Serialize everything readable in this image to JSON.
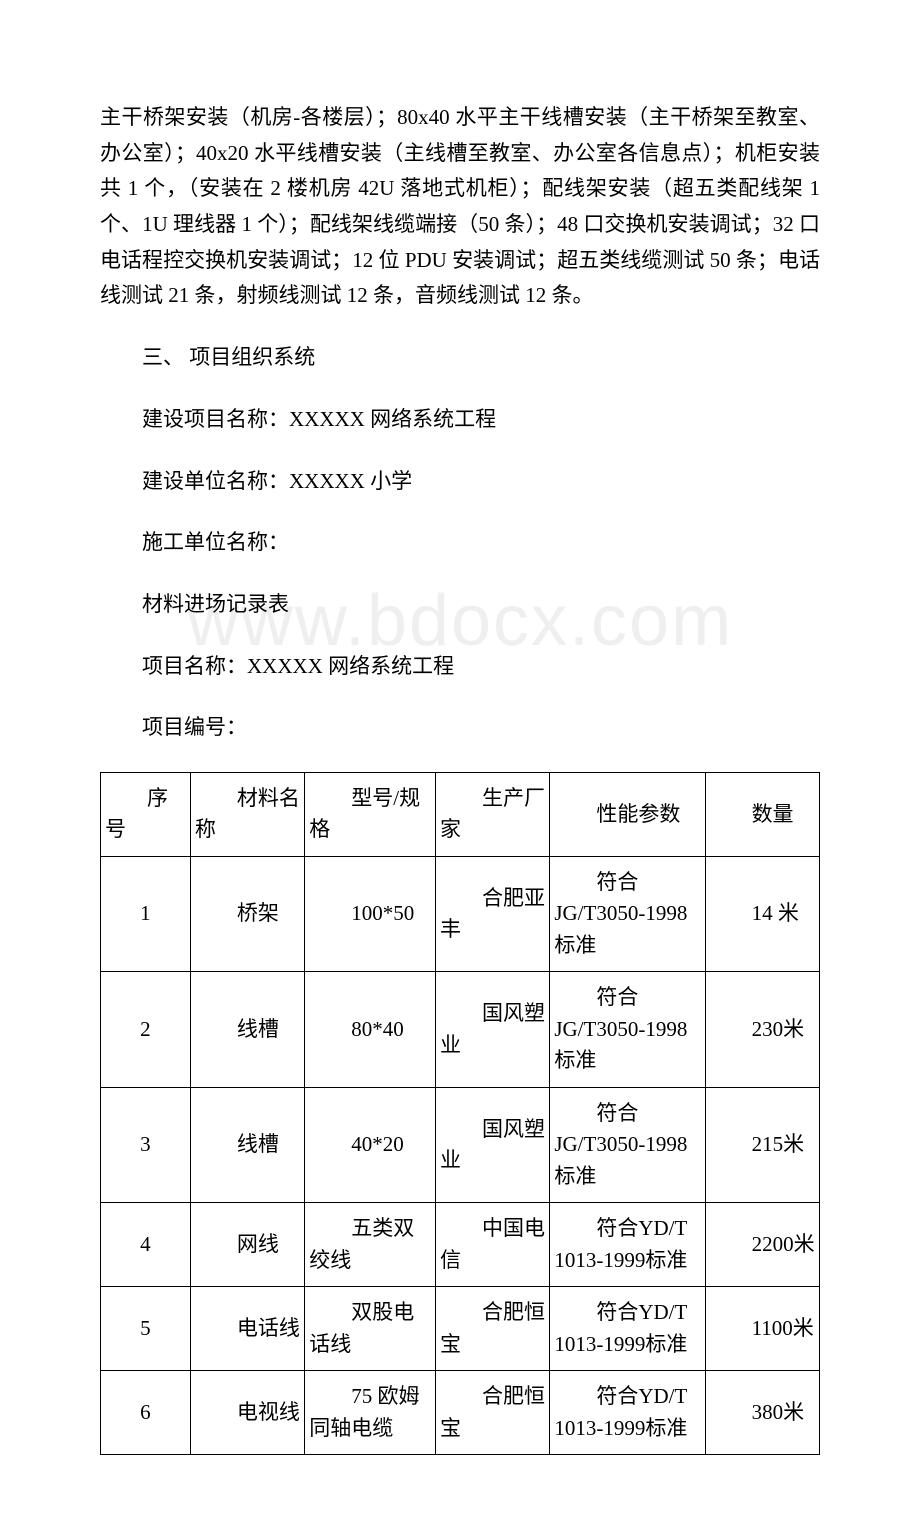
{
  "watermark": "www.bdocx.com",
  "paragraphs": {
    "p1": "主干桥架安装（机房-各楼层）；80x40 水平主干线槽安装（主干桥架至教室、办公室）；40x20 水平线槽安装（主线槽至教室、办公室各信息点）；机柜安装共 1 个，（安装在 2 楼机房 42U 落地式机柜）；配线架安装（超五类配线架 1 个、1U 理线器 1 个）；配线架线缆端接（50 条）；48 口交换机安装调试；32 口电话程控交换机安装调试；12 位 PDU 安装调试；超五类线缆测试 50 条；电话线测试 21 条，射频线测试 12 条，音频线测试 12 条。",
    "p2": "三、 项目组织系统",
    "p3": "建设项目名称：XXXXX 网络系统工程",
    "p4": "建设单位名称：XXXXX 小学",
    "p5": "施工单位名称：",
    "p6": "材料进场记录表",
    "p7": "项目名称：XXXXX 网络系统工程",
    "p8": "项目编号："
  },
  "table": {
    "headers": {
      "seq": "序号",
      "name": "材料名称",
      "spec": "型号/规格",
      "mfr": "生产厂家",
      "perf": "性能参数",
      "qty": "数量"
    },
    "rows": [
      {
        "seq": "1",
        "name": "桥架",
        "spec": "100*50",
        "mfr": "合肥亚丰",
        "perf": "符合JG/T3050-1998 标准",
        "qty": "14 米"
      },
      {
        "seq": "2",
        "name": "线槽",
        "spec": "80*40",
        "mfr": "国风塑业",
        "perf": "符合JG/T3050-1998 标准",
        "qty": "230米"
      },
      {
        "seq": "3",
        "name": "线槽",
        "spec": "40*20",
        "mfr": "国风塑业",
        "perf": "符合JG/T3050-1998 标准",
        "qty": "215米"
      },
      {
        "seq": "4",
        "name": "网线",
        "spec": "五类双绞线",
        "mfr": "中国电信",
        "perf": "符合YD/T 1013-1999标准",
        "qty": "2200米"
      },
      {
        "seq": "5",
        "name": "电话线",
        "spec": "双股电话线",
        "mfr": "合肥恒宝",
        "perf": "符合YD/T 1013-1999标准",
        "qty": "1100米"
      },
      {
        "seq": "6",
        "name": "电视线",
        "spec": "75 欧姆同轴电缆",
        "mfr": "合肥恒宝",
        "perf": "符合YD/T 1013-1999标准",
        "qty": "380米"
      }
    ]
  }
}
